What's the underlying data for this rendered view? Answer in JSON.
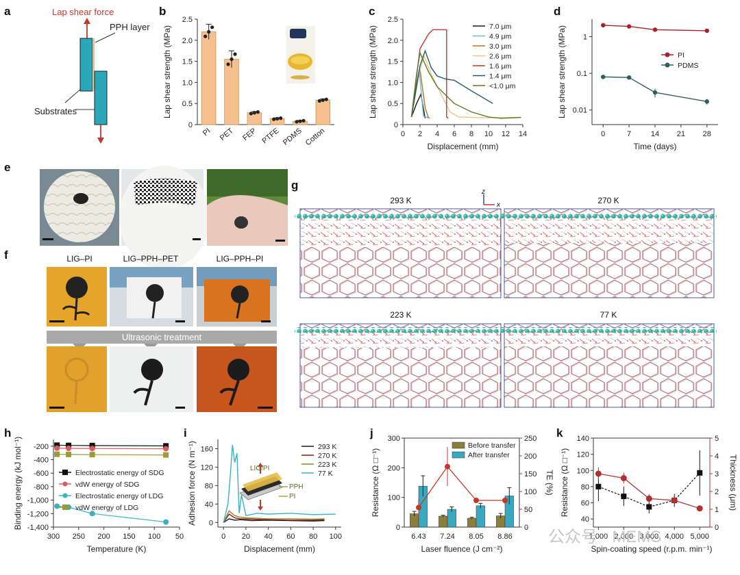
{
  "panels": {
    "a": {
      "letter": "a",
      "force_label": "Lap shear force",
      "layer_label": "PPH layer",
      "substrates_label": "Substrates"
    },
    "e": {
      "letter": "e"
    },
    "f": {
      "letter": "f",
      "labels": [
        "LIG–PI",
        "LIG–PPH–PET",
        "LIG–PPH–PI"
      ],
      "treatment": "Ultrasonic treatment"
    },
    "g": {
      "letter": "g",
      "temps": [
        "293 K",
        "270 K",
        "223 K",
        "77 K"
      ],
      "axis_z": "z",
      "axis_x": "x"
    }
  },
  "chart_data": [
    {
      "id": "b",
      "letter": "b",
      "type": "bar",
      "ylabel": "Lap shear strength (MPa)",
      "ylim": [
        0,
        2.5
      ],
      "yticks": [
        "0",
        "0.5",
        "1.0",
        "1.5",
        "2.0",
        "2.5"
      ],
      "categories": [
        "PI",
        "PET",
        "FEP",
        "PTFE",
        "PDMS",
        "Cotton"
      ],
      "values": [
        2.2,
        1.55,
        0.28,
        0.14,
        0.08,
        0.58
      ],
      "errors": [
        0.18,
        0.2,
        0.03,
        0.02,
        0.02,
        0.03
      ]
    },
    {
      "id": "c",
      "letter": "c",
      "type": "line",
      "xlabel": "Displacement (mm)",
      "ylabel": "Lap shear strength (MPa)",
      "xlim": [
        0,
        14
      ],
      "ylim": [
        0,
        2.5
      ],
      "xticks": [
        "0",
        "2",
        "4",
        "6",
        "8",
        "10",
        "12",
        "14"
      ],
      "yticks": [
        "0",
        "0.5",
        "1.0",
        "1.5",
        "2.0",
        "2.5"
      ],
      "series": [
        {
          "name": "7.0 μm",
          "color": "#1a1a1a",
          "x": [
            1,
            1.6,
            2.1,
            2.6
          ],
          "y": [
            0.18,
            0.5,
            0.72,
            0.15
          ]
        },
        {
          "name": "4.9 μm",
          "color": "#6bb8d6",
          "x": [
            1,
            1.5,
            1.9,
            2.4,
            3.2
          ],
          "y": [
            0.18,
            0.9,
            1.3,
            0.2,
            0.15
          ]
        },
        {
          "name": "3.0 μm",
          "color": "#b8712a",
          "x": [
            1,
            1.5,
            2.0,
            2.6,
            3.0
          ],
          "y": [
            0.18,
            0.9,
            1.3,
            0.4,
            0.15
          ]
        },
        {
          "name": "2.6 μm",
          "color": "#e8c98a",
          "x": [
            1,
            2,
            2.5,
            3.3,
            4.5,
            5.5,
            6.5,
            8,
            10,
            13.8
          ],
          "y": [
            0.18,
            1.3,
            1.62,
            1.2,
            0.7,
            0.3,
            0.18,
            0.17,
            0.16,
            0.17
          ]
        },
        {
          "name": "1.6 μm",
          "color": "#c0392b",
          "x": [
            1,
            2,
            3,
            3.5,
            4,
            5.1,
            5.1,
            5.3
          ],
          "y": [
            0.18,
            1.8,
            2.15,
            2.25,
            2.25,
            2.25,
            0.18,
            0.15
          ]
        },
        {
          "name": "1.4 μm",
          "color": "#1e5a6a",
          "x": [
            1,
            2,
            2.6,
            3.3,
            4,
            5,
            6,
            8,
            10.5
          ],
          "y": [
            0.18,
            1.4,
            1.75,
            1.35,
            1.15,
            1.08,
            1.05,
            0.8,
            0.5
          ]
        },
        {
          "name": "<1.0 μm",
          "color": "#5a7a2a",
          "x": [
            1,
            1.6,
            2,
            3,
            4,
            6,
            8,
            10,
            11.5,
            13.8
          ],
          "y": [
            0.18,
            1.2,
            1.7,
            1.25,
            0.9,
            0.5,
            0.3,
            0.18,
            0.15,
            0.17
          ]
        }
      ]
    },
    {
      "id": "d",
      "letter": "d",
      "type": "line",
      "xlabel": "Time (days)",
      "ylabel": "Lap shear strength (MPa)",
      "xlim": [
        -3,
        31
      ],
      "ylim": [
        0.004,
        3
      ],
      "xticks": [
        "0",
        "7",
        "14",
        "21",
        "28"
      ],
      "yticks": [
        "0.01",
        "0.1",
        "1"
      ],
      "series": [
        {
          "name": "PI",
          "color": "#a8202a",
          "x": [
            0,
            7,
            14,
            28
          ],
          "y": [
            2.05,
            1.9,
            1.55,
            1.45
          ]
        },
        {
          "name": "PDMS",
          "color": "#2f5e5e",
          "x": [
            0,
            7,
            14,
            28
          ],
          "y": [
            0.08,
            0.077,
            0.03,
            0.017
          ]
        }
      ]
    },
    {
      "id": "h",
      "letter": "h",
      "type": "line",
      "xlabel": "Temperature (K)",
      "ylabel": "Binding energy (kJ mol⁻¹)",
      "xlim": [
        300,
        50
      ],
      "ylim": [
        -1400,
        -100
      ],
      "xticks": [
        "300",
        "250",
        "200",
        "150",
        "100",
        "50"
      ],
      "yticks": [
        "-200",
        "-400",
        "-600",
        "-800",
        "-1,000",
        "-1,200",
        "-1,400"
      ],
      "series": [
        {
          "name": "Electrostatic energy of SDG",
          "color": "#111111",
          "marker": "square",
          "x": [
            293,
            270,
            223,
            77
          ],
          "y": [
            -185,
            -188,
            -190,
            -195
          ]
        },
        {
          "name": "vdW energy of SDG",
          "color": "#e05a5a",
          "marker": "circle",
          "x": [
            293,
            270,
            223,
            77
          ],
          "y": [
            -230,
            -232,
            -235,
            -238
          ]
        },
        {
          "name": "Electrostatic energy of LDG",
          "color": "#39b0c4",
          "marker": "circle",
          "x": [
            293,
            270,
            223,
            77
          ],
          "y": [
            -1090,
            -1105,
            -1200,
            -1325
          ]
        },
        {
          "name": "vdW energy of LDG",
          "color": "#9a9a3a",
          "marker": "square",
          "x": [
            293,
            270,
            223,
            77
          ],
          "y": [
            -320,
            -322,
            -325,
            -330
          ]
        }
      ]
    },
    {
      "id": "i",
      "letter": "i",
      "type": "line",
      "xlabel": "Displacement (mm)",
      "ylabel": "Adhesion force (N m⁻¹)",
      "xlim": [
        -5,
        105
      ],
      "ylim": [
        -10,
        180
      ],
      "xticks": [
        "0",
        "20",
        "40",
        "60",
        "80",
        "100"
      ],
      "yticks": [
        "0",
        "40",
        "80",
        "120",
        "160"
      ],
      "inset": {
        "lig": "LIG/PI",
        "pph": "PPH",
        "pi": "PI"
      },
      "series": [
        {
          "name": "293 K",
          "color": "#1a1a1a",
          "x": [
            0,
            5,
            10,
            15,
            25,
            40,
            60,
            80,
            90
          ],
          "y": [
            0,
            8,
            5,
            6,
            4,
            5,
            4,
            3,
            4
          ]
        },
        {
          "name": "270 K",
          "color": "#8b1a1a",
          "x": [
            0,
            5,
            10,
            15,
            25,
            40,
            60,
            80,
            90
          ],
          "y": [
            0,
            18,
            10,
            8,
            7,
            6,
            5,
            5,
            6
          ]
        },
        {
          "name": "223 K",
          "color": "#8a8a2a",
          "x": [
            0,
            5,
            10,
            14,
            20,
            30,
            40,
            60,
            80,
            90
          ],
          "y": [
            0,
            25,
            15,
            12,
            10,
            9,
            8,
            8,
            7,
            8
          ]
        },
        {
          "name": "77 K",
          "color": "#39b0c4",
          "x": [
            0,
            4,
            6,
            8,
            10,
            12,
            14,
            16,
            20,
            30,
            40,
            60,
            80,
            100
          ],
          "y": [
            0,
            40,
            100,
            168,
            130,
            150,
            20,
            60,
            15,
            20,
            18,
            20,
            17,
            18
          ]
        }
      ]
    },
    {
      "id": "j",
      "letter": "j",
      "type": "bar",
      "xlabel": "Laser fluence (J cm⁻²)",
      "ylabel": "Resistance (Ω □⁻¹)",
      "y2label": "TE (%)",
      "categories": [
        "6.43",
        "7.24",
        "8.05",
        "8.86"
      ],
      "ylim": [
        0,
        300
      ],
      "y2lim": [
        0,
        250
      ],
      "yticks": [
        "0",
        "100",
        "200",
        "300"
      ],
      "y2ticks": [
        "0",
        "50",
        "100",
        "150",
        "200",
        "250"
      ],
      "series": [
        {
          "name": "Before transfer",
          "color": "#8b7d3a",
          "values": [
            45,
            37,
            30,
            38
          ],
          "errors": [
            8,
            3,
            3,
            8
          ]
        },
        {
          "name": "After transfer",
          "color": "#39a8c0",
          "values": [
            138,
            60,
            72,
            105
          ],
          "errors": [
            35,
            8,
            8,
            28
          ]
        }
      ],
      "line": {
        "name": "TE",
        "color": "#c0392b",
        "values": [
          55,
          170,
          75,
          75
        ],
        "errors": [
          25,
          55,
          8,
          12
        ]
      }
    },
    {
      "id": "k",
      "letter": "k",
      "type": "line",
      "xlabel": "Spin-coating speed (r.p.m. min⁻¹)",
      "ylabel": "Resistance (Ω □⁻¹)",
      "y2label": "Thickness (μm)",
      "categories": [
        "1,000",
        "2,000",
        "3,000",
        "4,000",
        "5,000"
      ],
      "ylim": [
        30,
        140
      ],
      "y2lim": [
        0,
        5
      ],
      "yticks": [
        "40",
        "60",
        "80",
        "100",
        "120",
        "140"
      ],
      "y2ticks": [
        "0",
        "1",
        "2",
        "3",
        "4",
        "5"
      ],
      "series": [
        {
          "name": "Resistance",
          "color": "#111111",
          "axis": "left",
          "values": [
            80,
            68,
            55,
            63,
            97
          ],
          "errors": [
            18,
            12,
            8,
            8,
            28
          ]
        },
        {
          "name": "Thickness",
          "color": "#b03030",
          "axis": "right",
          "values": [
            3.0,
            2.75,
            1.6,
            1.5,
            1.05
          ],
          "errors": [
            0.35,
            0.3,
            0.25,
            0.3,
            0.05
          ]
        }
      ]
    }
  ],
  "watermark": "公众号 · MEMS"
}
